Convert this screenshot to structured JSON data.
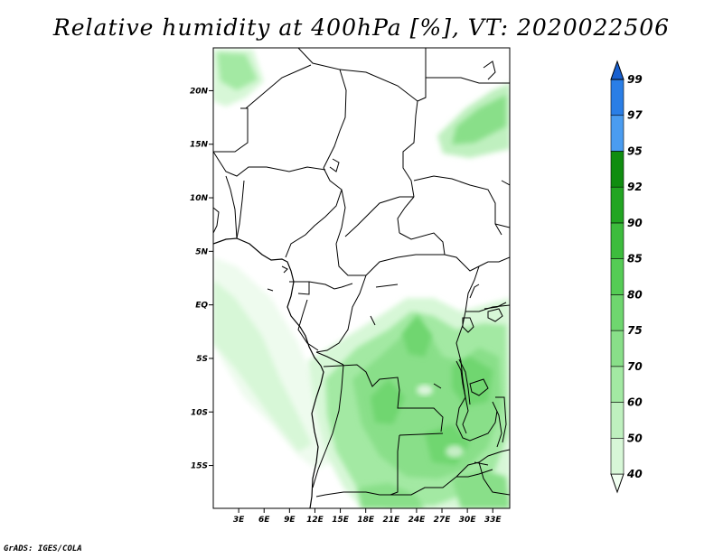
{
  "map": {
    "title": "Relative humidity at 400hPa [%], VT: 2020022506",
    "credit": "GrADS: IGES/COLA",
    "lat_ticks": [
      "20N",
      "15N",
      "10N",
      "5N",
      "EQ",
      "5S",
      "10S",
      "15S"
    ],
    "lat_values": [
      20,
      15,
      10,
      5,
      0,
      -5,
      -10,
      -15
    ],
    "lon_ticks": [
      "3E",
      "6E",
      "9E",
      "12E",
      "15E",
      "18E",
      "21E",
      "24E",
      "27E",
      "30E",
      "33E"
    ],
    "lon_values": [
      3,
      6,
      9,
      12,
      15,
      18,
      21,
      24,
      27,
      30,
      33
    ],
    "extent": {
      "lon": [
        0,
        35
      ],
      "lat": [
        -19,
        24
      ]
    }
  },
  "colorbar": {
    "labels": [
      "40",
      "50",
      "60",
      "70",
      "75",
      "80",
      "85",
      "90",
      "92",
      "95",
      "97",
      "99"
    ],
    "colors": [
      "#f0fff0",
      "#d7f7d7",
      "#bff0bf",
      "#a3e9a3",
      "#89df89",
      "#6fd66f",
      "#55cc55",
      "#3dbc3d",
      "#22a522",
      "#108d10",
      "#4a9cf0",
      "#2a7ee6",
      "#1860d0"
    ]
  }
}
